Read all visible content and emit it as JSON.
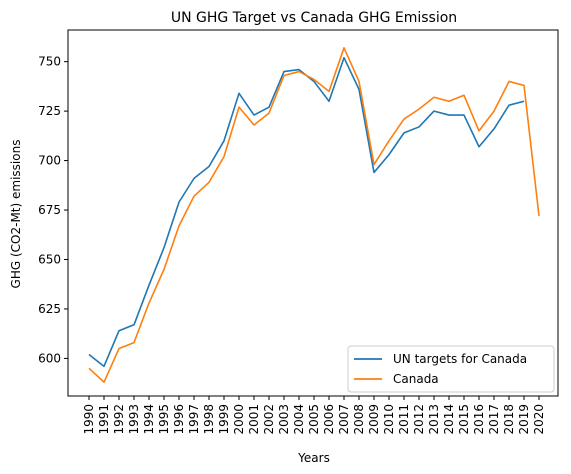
{
  "chart_data": {
    "type": "line",
    "title": "UN GHG Target vs Canada GHG Emission",
    "xlabel": "Years",
    "ylabel": "GHG (CO2-Mt) emissions",
    "ylim": [
      581,
      766
    ],
    "yticks": [
      600,
      625,
      650,
      675,
      700,
      725,
      750
    ],
    "categories": [
      "1990",
      "1991",
      "1992",
      "1993",
      "1994",
      "1995",
      "1996",
      "1997",
      "1998",
      "1999",
      "2000",
      "2001",
      "2002",
      "2003",
      "2004",
      "2005",
      "2006",
      "2007",
      "2008",
      "2009",
      "2010",
      "2011",
      "2012",
      "2013",
      "2014",
      "2015",
      "2016",
      "2017",
      "2018",
      "2019",
      "2020"
    ],
    "legend_position": "lower-right",
    "grid": false,
    "series": [
      {
        "name": "UN targets for Canada",
        "color": "#1f77b4",
        "values": [
          602,
          596,
          614,
          617,
          637,
          656,
          679,
          691,
          697,
          710,
          734,
          723,
          727,
          745,
          746,
          740,
          730,
          752,
          736,
          694,
          703,
          714,
          717,
          725,
          723,
          723,
          707,
          716,
          728,
          730,
          null
        ]
      },
      {
        "name": "Canada",
        "color": "#ff7f0e",
        "values": [
          595,
          588,
          605,
          608,
          628,
          645,
          667,
          682,
          689,
          702,
          727,
          718,
          724,
          743,
          745,
          741,
          735,
          757,
          740,
          698,
          710,
          721,
          726,
          732,
          730,
          733,
          715,
          725,
          740,
          738,
          672
        ]
      }
    ]
  }
}
